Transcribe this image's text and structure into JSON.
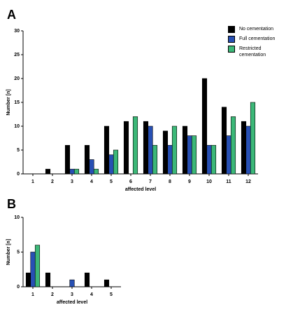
{
  "chart_data": [
    {
      "type": "bar",
      "panel": "A",
      "y_label": "Number [n]",
      "x_label": "affected level",
      "categories": [
        "1",
        "2",
        "3",
        "4",
        "5",
        "6",
        "7",
        "8",
        "9",
        "10",
        "11",
        "12"
      ],
      "series": [
        {
          "name": "No cementation",
          "color": "#000000",
          "values": [
            0,
            1,
            6,
            6,
            10,
            11,
            11,
            9,
            10,
            20,
            14,
            11
          ]
        },
        {
          "name": "Full cementation",
          "color": "#2850b4",
          "values": [
            0,
            0,
            1,
            3,
            4,
            0,
            10,
            6,
            8,
            6,
            8,
            10
          ]
        },
        {
          "name": "Restricted cementation",
          "color": "#3cb878",
          "values": [
            0,
            0,
            1,
            1,
            5,
            12,
            6,
            10,
            8,
            6,
            12,
            15
          ]
        }
      ],
      "ylim": [
        0,
        30
      ],
      "yticks": [
        0,
        5,
        10,
        15,
        20,
        25,
        30
      ],
      "legend": "top-right"
    },
    {
      "type": "bar",
      "panel": "B",
      "y_label": "Number [n]",
      "x_label": "affected level",
      "categories": [
        "1",
        "2",
        "3",
        "4",
        "5"
      ],
      "series": [
        {
          "color": "#000000",
          "values": [
            2,
            2,
            0,
            2,
            1
          ]
        },
        {
          "color": "#2850b4",
          "values": [
            5,
            0,
            1,
            0,
            0
          ]
        },
        {
          "color": "#3cb878",
          "values": [
            6,
            0,
            0,
            0,
            0
          ]
        }
      ],
      "ylim": [
        0,
        10
      ],
      "yticks": [
        0,
        5,
        10
      ]
    }
  ]
}
